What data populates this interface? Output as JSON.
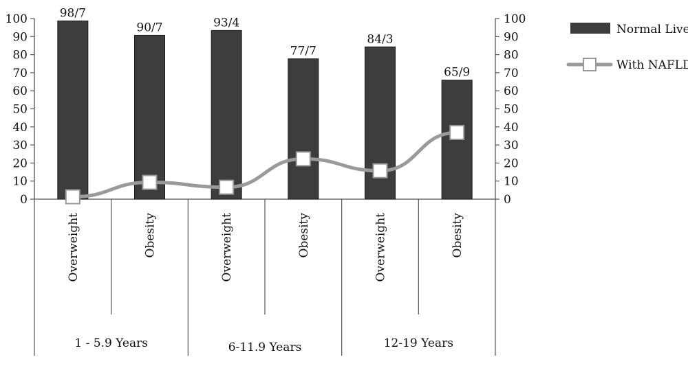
{
  "chart_data": {
    "type": "bar",
    "categories": [
      "Overweight",
      "Obesity",
      "Overweight",
      "Obesity",
      "Overweight",
      "Obesity"
    ],
    "groups": [
      "1 - 5.9 Years",
      "6-11.9 Years",
      "12-19 Years"
    ],
    "series": [
      {
        "name": "Normal Live",
        "type": "bar",
        "values": [
          98.7,
          90.7,
          93.4,
          77.7,
          84.3,
          65.9
        ],
        "data_labels": [
          "98/7",
          "90/7",
          "93/4",
          "77/7",
          "84/3",
          "65/9"
        ],
        "color": "#3d3d3d"
      },
      {
        "name": "With NAFLD",
        "type": "line",
        "values": [
          1.3,
          9.3,
          6.6,
          22.3,
          15.7,
          36.9
        ],
        "color": "#9a9a9a"
      }
    ],
    "ylim": [
      0,
      100
    ],
    "yticks": [
      0,
      10,
      20,
      30,
      40,
      50,
      60,
      70,
      80,
      90,
      100
    ],
    "secondary_ylim": [
      0,
      100
    ],
    "secondary_yticks": [
      0,
      10,
      20,
      30,
      40,
      50,
      60,
      70,
      80,
      90,
      100
    ],
    "grid": false,
    "legend": "top-right"
  }
}
